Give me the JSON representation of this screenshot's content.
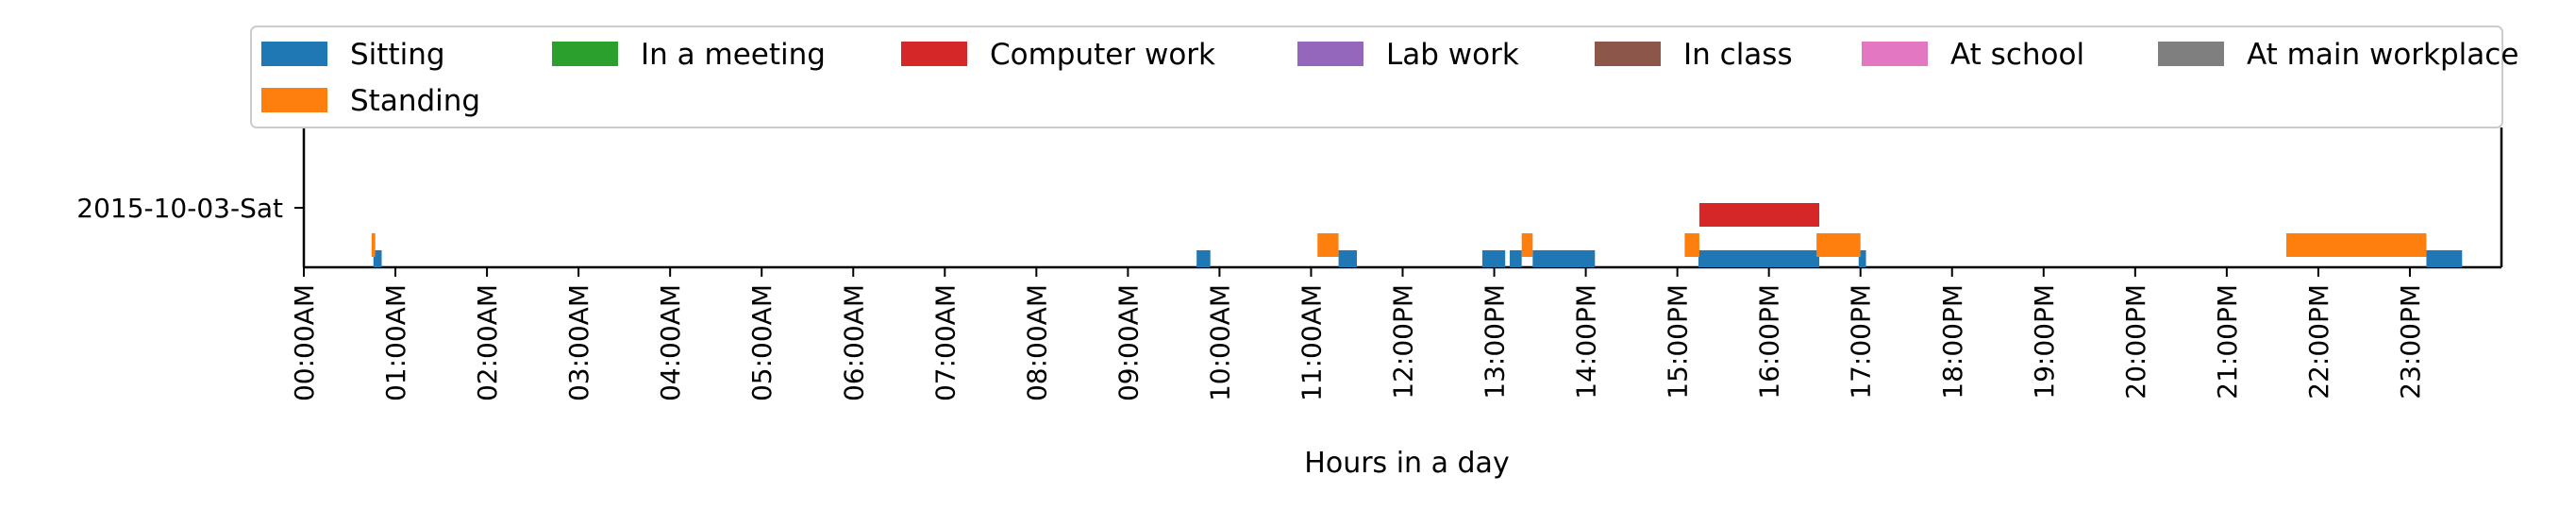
{
  "chart_data": {
    "type": "timeline",
    "xlabel": "Hours in a day",
    "xlim": [
      0,
      24
    ],
    "x_ticks": [
      0,
      1,
      2,
      3,
      4,
      5,
      6,
      7,
      8,
      9,
      10,
      11,
      12,
      13,
      14,
      15,
      16,
      17,
      18,
      19,
      20,
      21,
      22,
      23
    ],
    "x_tick_labels": [
      "00:00AM",
      "01:00AM",
      "02:00AM",
      "03:00AM",
      "04:00AM",
      "05:00AM",
      "06:00AM",
      "07:00AM",
      "08:00AM",
      "09:00AM",
      "10:00AM",
      "11:00AM",
      "12:00PM",
      "13:00PM",
      "14:00PM",
      "15:00PM",
      "16:00PM",
      "17:00PM",
      "18:00PM",
      "19:00PM",
      "20:00PM",
      "21:00PM",
      "22:00PM",
      "23:00PM"
    ],
    "y_categories": [
      "2015-10-03-Sat"
    ],
    "legend_position": "top",
    "series": [
      {
        "name": "Sitting",
        "color": "#1f77b4",
        "lane": 0,
        "intervals": [
          [
            0.76,
            0.85
          ],
          [
            9.75,
            9.9
          ],
          [
            11.3,
            11.5
          ],
          [
            12.87,
            13.12
          ],
          [
            13.17,
            13.3
          ],
          [
            13.42,
            14.1
          ],
          [
            15.23,
            16.55
          ],
          [
            16.98,
            17.06
          ],
          [
            23.18,
            23.57
          ]
        ]
      },
      {
        "name": "Standing",
        "color": "#ff7f0e",
        "lane": 1,
        "intervals": [
          [
            0.74,
            0.78
          ],
          [
            11.07,
            11.3
          ],
          [
            13.3,
            13.42
          ],
          [
            15.08,
            15.24
          ],
          [
            16.52,
            17.0
          ],
          [
            21.65,
            23.18
          ]
        ]
      },
      {
        "name": "In a meeting",
        "color": "#2ca02c",
        "lane": 2,
        "intervals": []
      },
      {
        "name": "Computer work",
        "color": "#d62728",
        "lane": 2,
        "intervals": [
          [
            15.24,
            16.55
          ]
        ]
      },
      {
        "name": "Lab work",
        "color": "#9467bd",
        "lane": 2,
        "intervals": []
      },
      {
        "name": "In class",
        "color": "#8c564b",
        "lane": 3,
        "intervals": []
      },
      {
        "name": "At school",
        "color": "#e377c2",
        "lane": 3,
        "intervals": []
      },
      {
        "name": "At main workplace",
        "color": "#7f7f7f",
        "lane": 4,
        "intervals": []
      }
    ]
  }
}
